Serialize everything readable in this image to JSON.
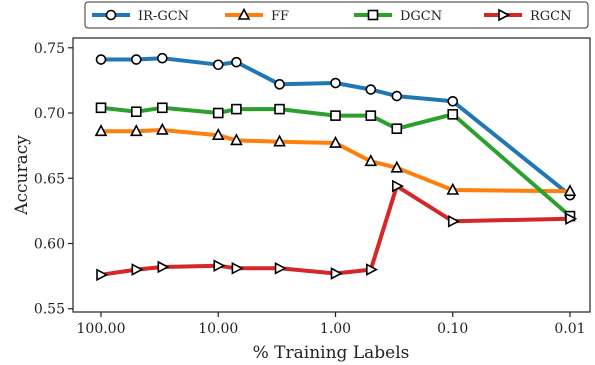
{
  "chart_data": {
    "type": "line",
    "xlabel": "% Training Labels",
    "ylabel": "Accuracy",
    "x_scale": "log-reversed",
    "x": [
      100,
      50,
      30,
      10,
      7,
      3,
      1,
      0.5,
      0.3,
      0.1,
      0.01
    ],
    "xlim": [
      100,
      0.01
    ],
    "ylim": [
      0.55,
      0.75
    ],
    "x_ticks": [
      {
        "value": 100,
        "label": "100.00"
      },
      {
        "value": 10,
        "label": "10.00"
      },
      {
        "value": 1,
        "label": "1.00"
      },
      {
        "value": 0.1,
        "label": "0.10"
      },
      {
        "value": 0.01,
        "label": "0.01"
      }
    ],
    "y_ticks": [
      {
        "value": 0.55,
        "label": "0.55"
      },
      {
        "value": 0.6,
        "label": "0.60"
      },
      {
        "value": 0.65,
        "label": "0.65"
      },
      {
        "value": 0.7,
        "label": "0.70"
      },
      {
        "value": 0.75,
        "label": "0.75"
      }
    ],
    "grid": false,
    "legend_position": "top",
    "series": [
      {
        "name": "IR-GCN",
        "color": "#1f77b4",
        "marker": "circle",
        "values": [
          0.741,
          0.741,
          0.742,
          0.737,
          0.739,
          0.722,
          0.723,
          0.718,
          0.713,
          0.709,
          0.637
        ]
      },
      {
        "name": "FF",
        "color": "#ff7f0e",
        "marker": "triangle-up",
        "values": [
          0.686,
          0.686,
          0.687,
          0.683,
          0.679,
          0.678,
          0.677,
          0.663,
          0.658,
          0.641,
          0.64
        ]
      },
      {
        "name": "DGCN",
        "color": "#2ca02c",
        "marker": "square",
        "values": [
          0.704,
          0.701,
          0.704,
          0.7,
          0.703,
          0.703,
          0.698,
          0.698,
          0.688,
          0.699,
          0.621
        ]
      },
      {
        "name": "RGCN",
        "color": "#d62728",
        "marker": "triangle-right",
        "values": [
          0.576,
          0.58,
          0.582,
          0.583,
          0.581,
          0.581,
          0.577,
          0.58,
          0.644,
          0.617,
          0.619
        ]
      }
    ]
  }
}
